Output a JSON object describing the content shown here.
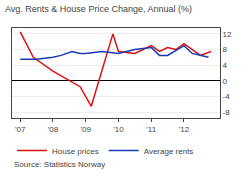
{
  "chart_data": {
    "type": "line",
    "title": "Avg. Rents & House Price Change, Annual (%)",
    "series": [
      {
        "name": "House prices",
        "color": "#dd1111",
        "line_style": "solid",
        "x": [
          2007.0,
          2007.4,
          2008.0,
          2008.5,
          2008.83,
          2009.17,
          2009.42,
          2009.67,
          2009.83,
          2010.0,
          2010.5,
          2011.0,
          2011.25,
          2011.5,
          2011.75,
          2012.0,
          2012.5,
          2012.83
        ],
        "values": [
          12.5,
          6.0,
          2.5,
          0.0,
          -1.5,
          -6.5,
          0.5,
          7.5,
          12.0,
          7.5,
          7.0,
          9.0,
          7.5,
          8.5,
          8.0,
          9.5,
          6.5,
          7.5
        ]
      },
      {
        "name": "Average rents",
        "color": "#1a3ab5",
        "line_style": "solid",
        "x": [
          2007.0,
          2007.5,
          2008.0,
          2008.25,
          2008.58,
          2008.83,
          2009.0,
          2009.5,
          2010.0,
          2010.25,
          2010.5,
          2011.0,
          2011.25,
          2011.5,
          2012.0,
          2012.25,
          2012.75
        ],
        "values": [
          5.5,
          5.5,
          6.0,
          6.5,
          7.5,
          7.0,
          7.0,
          7.5,
          7.0,
          7.5,
          8.0,
          8.5,
          6.5,
          6.5,
          9.0,
          7.0,
          6.0
        ]
      }
    ],
    "xlim": [
      2006.75,
      2013.1
    ],
    "xticks": [
      {
        "value": 2007,
        "label": "'07"
      },
      {
        "value": 2008,
        "label": "'08"
      },
      {
        "value": 2009,
        "label": "'09"
      },
      {
        "value": 2010,
        "label": "'10"
      },
      {
        "value": 2011,
        "label": "'11"
      },
      {
        "value": 2012,
        "label": "'12"
      }
    ],
    "ylim": [
      -9.5,
      13.5
    ],
    "yticks": [
      -8,
      -4,
      0,
      4,
      8,
      12
    ],
    "grid": true,
    "legend": "bottom",
    "annotations": [
      "Source: Statistics Norway"
    ]
  }
}
